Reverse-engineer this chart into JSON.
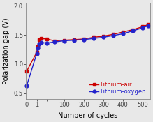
{
  "title": "",
  "xlabel": "Number of cycles",
  "ylabel": "Polarization gap (V)",
  "ylim": [
    0.4,
    2.05
  ],
  "yticks": [
    0.5,
    1.0,
    1.5,
    2.0
  ],
  "xticks": [
    0,
    1,
    10,
    100,
    200,
    300,
    400,
    500
  ],
  "xtick_labels": [
    "0",
    "1",
    "",
    "100",
    "200",
    "300",
    "400",
    "500"
  ],
  "background_color": "#e8e8e8",
  "lithium_air_x": [
    0,
    1,
    2,
    3,
    5,
    10,
    50,
    100,
    150,
    200,
    250,
    300,
    350,
    400,
    450,
    500,
    530
  ],
  "lithium_air_y": [
    0.88,
    1.2,
    1.3,
    1.42,
    1.44,
    1.43,
    1.4,
    1.41,
    1.42,
    1.43,
    1.46,
    1.48,
    1.51,
    1.55,
    1.59,
    1.64,
    1.68
  ],
  "lithium_oxygen_x": [
    0,
    1,
    2,
    3,
    5,
    10,
    50,
    100,
    150,
    200,
    250,
    300,
    350,
    400,
    450,
    500,
    530
  ],
  "lithium_oxygen_y": [
    0.63,
    1.18,
    1.28,
    1.35,
    1.37,
    1.36,
    1.38,
    1.4,
    1.41,
    1.42,
    1.44,
    1.46,
    1.49,
    1.52,
    1.57,
    1.62,
    1.66
  ],
  "air_color": "#cc0000",
  "oxygen_color": "#2222cc",
  "legend_labels": [
    "Lithium-air",
    "Lithium-oxygen"
  ],
  "marker_air": "s",
  "marker_oxygen": "o",
  "marker_size": 3.5,
  "linewidth": 1.0,
  "fontsize_axis_label": 7,
  "fontsize_tick": 6,
  "fontsize_legend": 6
}
